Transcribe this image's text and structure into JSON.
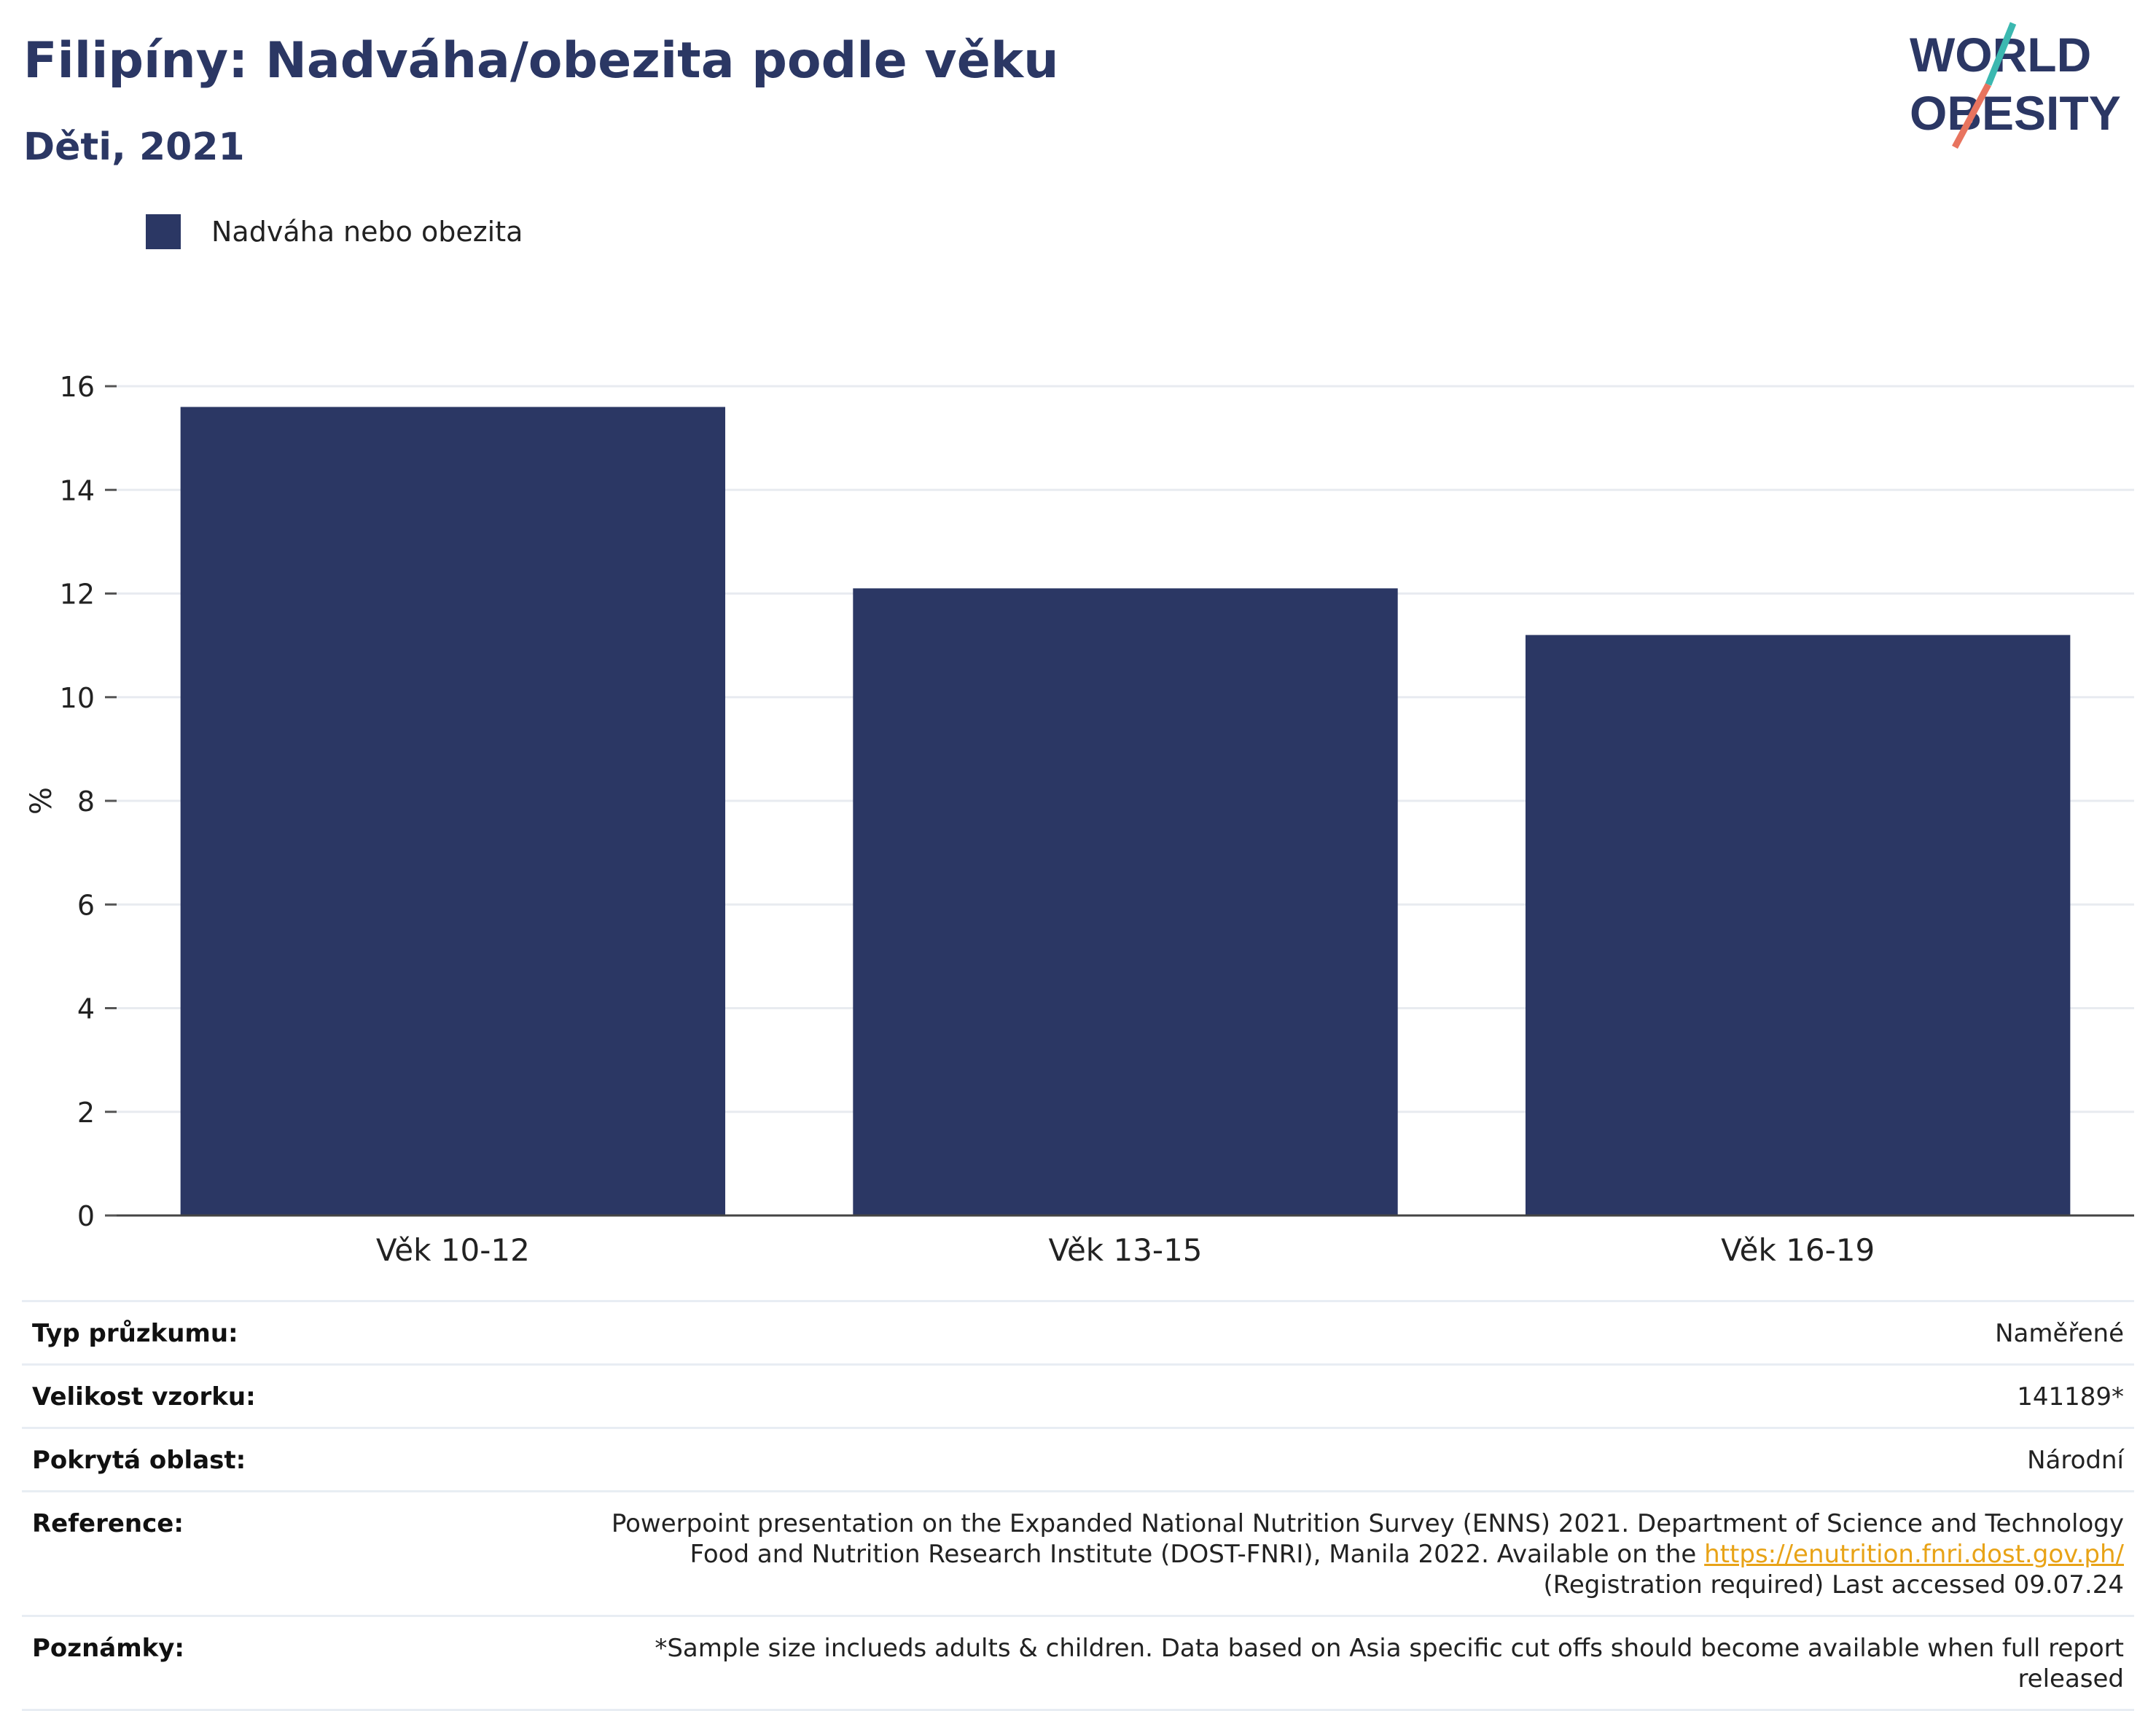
{
  "header": {
    "title": "Filipíny: Nadváha/obezita podle věku",
    "subtitle": "Děti, 2021"
  },
  "logo": {
    "line1": "WORLD",
    "line2": "OBESITY"
  },
  "chart_data": {
    "type": "bar",
    "categories": [
      "Věk 10-12",
      "Věk 13-15",
      "Věk 16-19"
    ],
    "series": [
      {
        "name": "Nadváha nebo obezita",
        "values": [
          15.6,
          12.1,
          11.2
        ],
        "color": "#2b3764"
      }
    ],
    "ylabel": "%",
    "ylim": [
      0,
      16
    ],
    "yticks": [
      0,
      2,
      4,
      6,
      8,
      10,
      12,
      14,
      16
    ],
    "grid": true,
    "legend": "top-left"
  },
  "info": {
    "survey_type_label": "Typ průzkumu:",
    "survey_type_value": "Naměřené",
    "sample_size_label": "Velikost vzorku:",
    "sample_size_value": "141189*",
    "coverage_label": "Pokrytá oblast:",
    "coverage_value": "Národní",
    "reference_label": "Reference:",
    "reference_text_before": "Powerpoint presentation on the Expanded National Nutrition Survey (ENNS) 2021. Department of Science and Technology Food and Nutrition Research Institute (DOST-FNRI), Manila 2022. Available on the ",
    "reference_link": "https://enutrition.fnri.dost.gov.ph/",
    "reference_text_after": " (Registration required) Last accessed 09.07.24",
    "notes_label": "Poznámky:",
    "notes_value": "*Sample size inclueds adults & children. Data based on Asia specific cut offs should become available when full report released"
  }
}
